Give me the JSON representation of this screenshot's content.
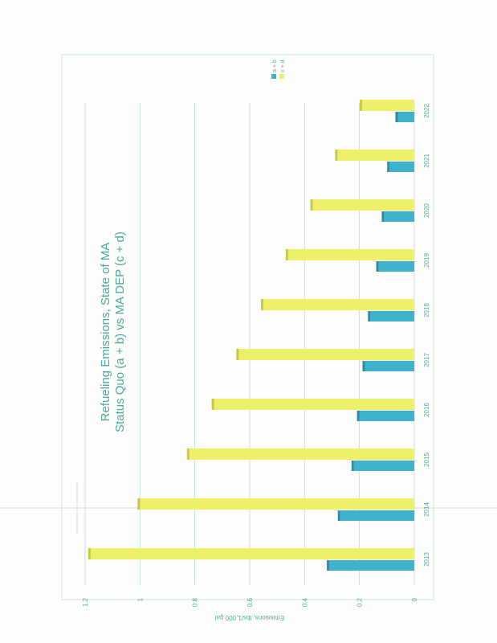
{
  "chart_data": {
    "type": "bar",
    "title": "Refueling Emissions, State of MA",
    "subtitle": "Status Quo (a + b)  vs MA DEP (c + d)",
    "ylabel": "Emissions, lbs/1,000 gal",
    "xlabel": "",
    "ylim": [
      0,
      1.2
    ],
    "y_ticks": [
      "0",
      "0.2",
      "0.4",
      "0.6",
      "0.8",
      "1",
      "1.2"
    ],
    "categories": [
      "2013",
      "2014",
      "2015",
      "2016",
      "2017",
      "2018",
      "2019",
      "2020",
      "2021",
      "2022"
    ],
    "series": [
      {
        "name": "a + b",
        "values": [
          0.31,
          0.27,
          0.22,
          0.2,
          0.18,
          0.16,
          0.13,
          0.11,
          0.09,
          0.06
        ]
      },
      {
        "name": "c + d",
        "values": [
          1.18,
          1.0,
          0.82,
          0.73,
          0.64,
          0.55,
          0.46,
          0.37,
          0.28,
          0.19
        ]
      }
    ],
    "colors": {
      "a + b": "#3fb3cc",
      "c + d": "#eef06a"
    },
    "grid": true,
    "legend_position": "top-right"
  }
}
